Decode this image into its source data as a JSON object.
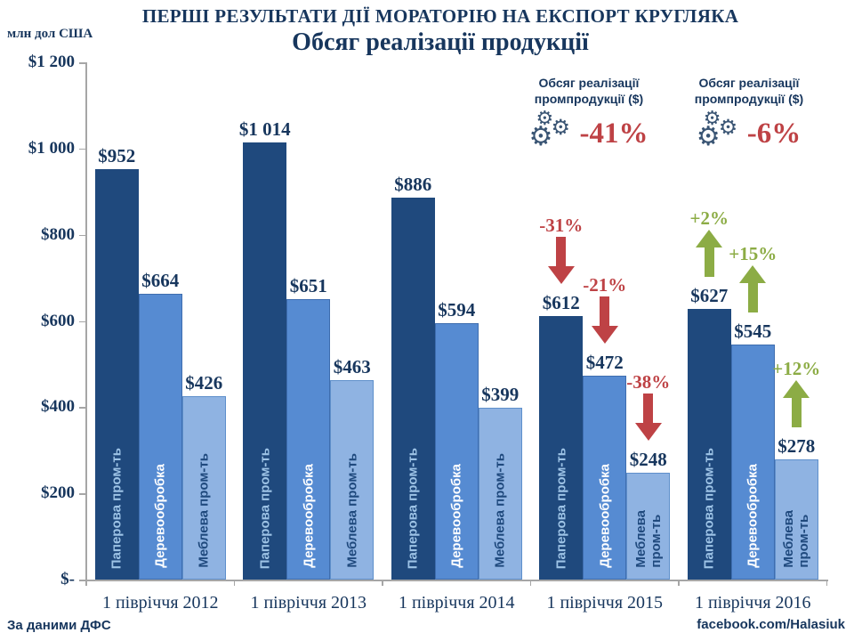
{
  "page": {
    "title": "ПЕРШІ РЕЗУЛЬТАТИ ДІЇ МОРАТОРІЮ НА ЕКСПОРТ КРУГЛЯКА",
    "subtitle": "Обсяг реалізації продукції",
    "y_unit": "млн дол США",
    "footer_source": "За даними ДФС",
    "footer_credit": "facebook.com/Halasiuk"
  },
  "annotations": [
    {
      "line1": "Обсяг реалізації",
      "line2": "промпродукції ($)",
      "value": "-41%",
      "icon": "gears-icon"
    },
    {
      "line1": "Обсяг реалізації",
      "line2": "промпродукції ($)",
      "value": "-6%",
      "icon": "gears-icon"
    }
  ],
  "icon_glyphs": {
    "gears-icon": "⚙"
  },
  "colors": {
    "navy_text": "#17365D",
    "bar_dark": "#1F497D",
    "bar_mid": "#568BD2",
    "bar_light": "#8FB3E2",
    "label_on_dark": "#9DC3E6",
    "label_on_mid": "#FFFFFF",
    "label_on_light": "#1F497D",
    "negative": "#BE4245",
    "positive": "#8CAC45",
    "axis": "#A6A6A6",
    "gear": "#3A5574"
  },
  "chart_data": {
    "type": "bar",
    "title": "Обсяг реалізації продукції",
    "xlabel": "",
    "ylabel": "млн дол США",
    "ylim": [
      0,
      1200
    ],
    "grid": false,
    "legend_position": "labels-inside-bars",
    "categories": [
      "1 півріччя 2012",
      "1 півріччя 2013",
      "1 півріччя 2014",
      "1 півріччя 2015",
      "1 півріччя 2016"
    ],
    "series": [
      {
        "name": "Паперова пром-ть",
        "values": [
          952,
          1014,
          886,
          612,
          627
        ],
        "labels": [
          "$952",
          "$1 014",
          "$886",
          "$612",
          "$627"
        ],
        "color": "#1F497D",
        "label_color": "#9DC3E6",
        "border": ""
      },
      {
        "name": "Деревообробка",
        "values": [
          664,
          651,
          594,
          472,
          545
        ],
        "labels": [
          "$664",
          "$651",
          "$594",
          "$472",
          "$545"
        ],
        "color": "#568BD2",
        "label_color": "#FFFFFF",
        "border": "#3E6DAF"
      },
      {
        "name": "Меблева пром-ть",
        "values": [
          426,
          463,
          399,
          248,
          278
        ],
        "labels": [
          "$426",
          "$463",
          "$399",
          "$248",
          "$278"
        ],
        "color": "#8FB3E2",
        "label_color": "#1F497D",
        "border": "#5E8FCB"
      }
    ],
    "yticks": [
      {
        "label": "$1 200",
        "value": 1200
      },
      {
        "label": "$1 000",
        "value": 1000
      },
      {
        "label": "$800",
        "value": 800
      },
      {
        "label": "$600",
        "value": 600
      },
      {
        "label": "$400",
        "value": 400
      },
      {
        "label": "$200",
        "value": 200
      },
      {
        "label": "$-",
        "value": 0
      }
    ],
    "changes": [
      {
        "cat": 3,
        "series": 0,
        "text": "-31%",
        "dir": "down"
      },
      {
        "cat": 3,
        "series": 1,
        "text": "-21%",
        "dir": "down"
      },
      {
        "cat": 3,
        "series": 2,
        "text": "-38%",
        "dir": "down"
      },
      {
        "cat": 4,
        "series": 0,
        "text": "+2%",
        "dir": "up"
      },
      {
        "cat": 4,
        "series": 1,
        "text": "+15%",
        "dir": "up"
      },
      {
        "cat": 4,
        "series": 2,
        "text": "+12%",
        "dir": "up"
      }
    ]
  }
}
